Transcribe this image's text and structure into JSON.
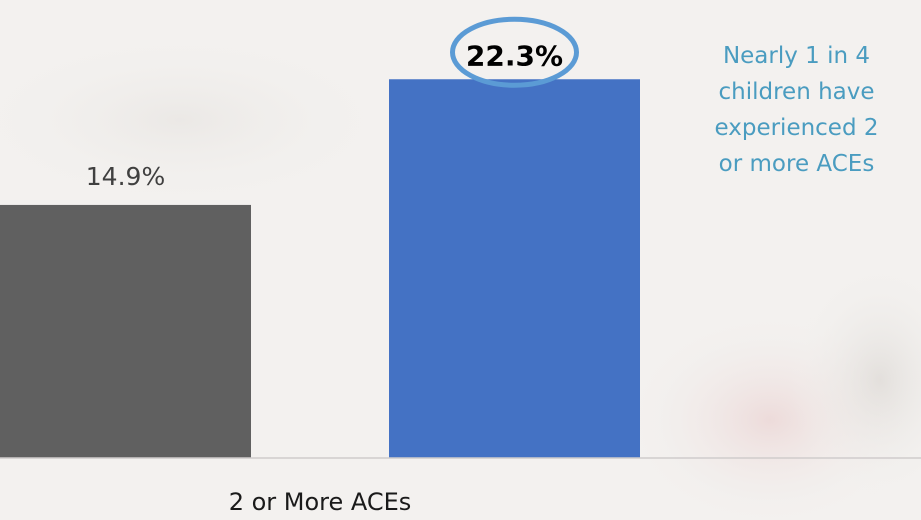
{
  "colors": {
    "background": "#f3f1ef",
    "bar_primary": "#606060",
    "bar_highlight": "#4472c4",
    "highlight_circle": "#5b9bd5",
    "callout_text": "#4a9cc0",
    "label_text": "#404040",
    "axis_line": "#d0cccc"
  },
  "chart_data": {
    "type": "bar",
    "categories": [
      "2 or More ACEs"
    ],
    "series": [
      {
        "values": [
          14.9
        ],
        "data_labels": [
          "14.9%"
        ],
        "color": "#606060"
      },
      {
        "values": [
          22.3
        ],
        "data_labels": [
          "22.3%"
        ],
        "color": "#4472c4",
        "highlighted": true
      }
    ],
    "ylim": [
      0,
      25.2
    ],
    "grid": false,
    "legend": "none"
  },
  "callout": {
    "lines": [
      "Nearly 1 in 4",
      "children have",
      "experienced 2",
      "or more ACEs"
    ]
  }
}
